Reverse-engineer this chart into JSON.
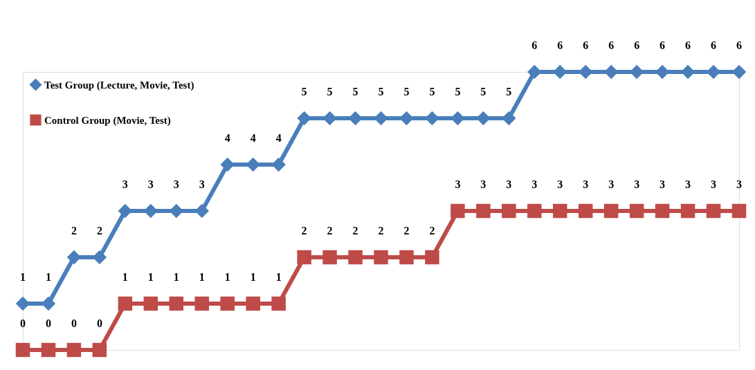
{
  "chart_data": {
    "type": "line",
    "categories": [
      null,
      null,
      null,
      null,
      null,
      null,
      null,
      null,
      null,
      null,
      null,
      null,
      null,
      null,
      null,
      null,
      null,
      null,
      null,
      null,
      null,
      null,
      null,
      null,
      null,
      null,
      null,
      null,
      null
    ],
    "series": [
      {
        "name": "Test Group (Lecture, Movie, Test)",
        "color": "#4a7ebb",
        "marker": "diamond",
        "values": [
          1,
          1,
          2,
          2,
          3,
          3,
          3,
          3,
          4,
          4,
          4,
          5,
          5,
          5,
          5,
          5,
          5,
          5,
          5,
          5,
          6,
          6,
          6,
          6,
          6,
          6,
          6,
          6,
          6
        ]
      },
      {
        "name": "Control Group (Movie, Test)",
        "color": "#be4b48",
        "marker": "square",
        "values": [
          0,
          0,
          0,
          0,
          1,
          1,
          1,
          1,
          1,
          1,
          1,
          2,
          2,
          2,
          2,
          2,
          2,
          3,
          3,
          3,
          3,
          3,
          3,
          3,
          3,
          3,
          3,
          3,
          3
        ]
      }
    ],
    "data_labels": true,
    "legend": "top left",
    "tick_labels": false,
    "grid": false
  }
}
